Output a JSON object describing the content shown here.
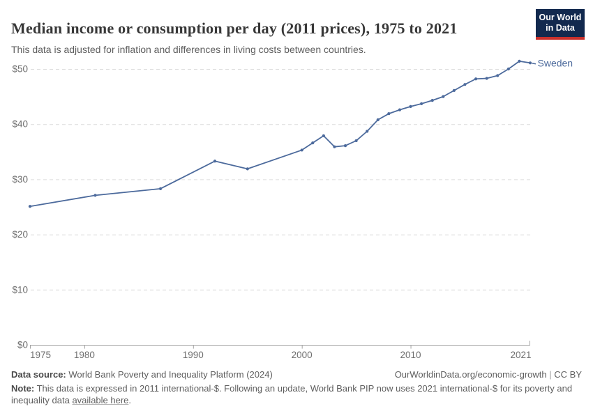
{
  "header": {
    "title": "Median income or consumption per day (2011 prices), 1975 to 2021",
    "subtitle": "This data is adjusted for inflation and differences in living costs between countries.",
    "logo": {
      "line1": "Our World",
      "line2": "in Data",
      "bg": "#12294e",
      "accent": "#c9302c"
    }
  },
  "colors": {
    "line": "#4C6A9C",
    "grid": "#dcdcdc",
    "axis": "#a3a3a3",
    "tick_text": "#6e6e6e"
  },
  "chart_data": {
    "type": "line",
    "title": "Median income or consumption per day (2011 prices), 1975 to 2021",
    "xlabel": "",
    "ylabel": "",
    "xlim": [
      1975,
      2021
    ],
    "ylim": [
      0,
      50
    ],
    "grid": "horizontal-dashed",
    "legend_position": "end-of-line",
    "xticks": [
      {
        "value": 1975,
        "label": "1975"
      },
      {
        "value": 1980,
        "label": "1980"
      },
      {
        "value": 1990,
        "label": "1990"
      },
      {
        "value": 2000,
        "label": "2000"
      },
      {
        "value": 2010,
        "label": "2010"
      },
      {
        "value": 2021,
        "label": "2021"
      }
    ],
    "yticks": [
      {
        "value": 0,
        "label": "$0"
      },
      {
        "value": 10,
        "label": "$10"
      },
      {
        "value": 20,
        "label": "$20"
      },
      {
        "value": 30,
        "label": "$30"
      },
      {
        "value": 40,
        "label": "$40"
      },
      {
        "value": 50,
        "label": "$50"
      }
    ],
    "series": [
      {
        "name": "Sweden",
        "color": "#4C6A9C",
        "points": [
          [
            1975,
            25.1
          ],
          [
            1981,
            27.1
          ],
          [
            1987,
            28.3
          ],
          [
            1992,
            33.3
          ],
          [
            1995,
            31.9
          ],
          [
            2000,
            35.3
          ],
          [
            2001,
            36.6
          ],
          [
            2002,
            37.9
          ],
          [
            2003,
            35.9
          ],
          [
            2004,
            36.1
          ],
          [
            2005,
            37.0
          ],
          [
            2006,
            38.7
          ],
          [
            2007,
            40.8
          ],
          [
            2008,
            41.9
          ],
          [
            2009,
            42.6
          ],
          [
            2010,
            43.2
          ],
          [
            2011,
            43.7
          ],
          [
            2012,
            44.3
          ],
          [
            2013,
            45.0
          ],
          [
            2014,
            46.1
          ],
          [
            2015,
            47.2
          ],
          [
            2016,
            48.2
          ],
          [
            2017,
            48.3
          ],
          [
            2018,
            48.8
          ],
          [
            2019,
            50.0
          ],
          [
            2020,
            51.4
          ],
          [
            2021,
            51.1
          ]
        ]
      }
    ]
  },
  "footer": {
    "source_label": "Data source:",
    "source_text": " World Bank Poverty and Inequality Platform (2024)",
    "site": "OurWorldinData.org/economic-growth",
    "sep": " | ",
    "license": "CC BY",
    "note_label": "Note:",
    "note_text": " This data is expressed in 2011 international-$. Following an update, World Bank PIP now uses 2021 international-$ for its poverty and inequality data ",
    "note_link": "available here",
    "note_period": "."
  }
}
